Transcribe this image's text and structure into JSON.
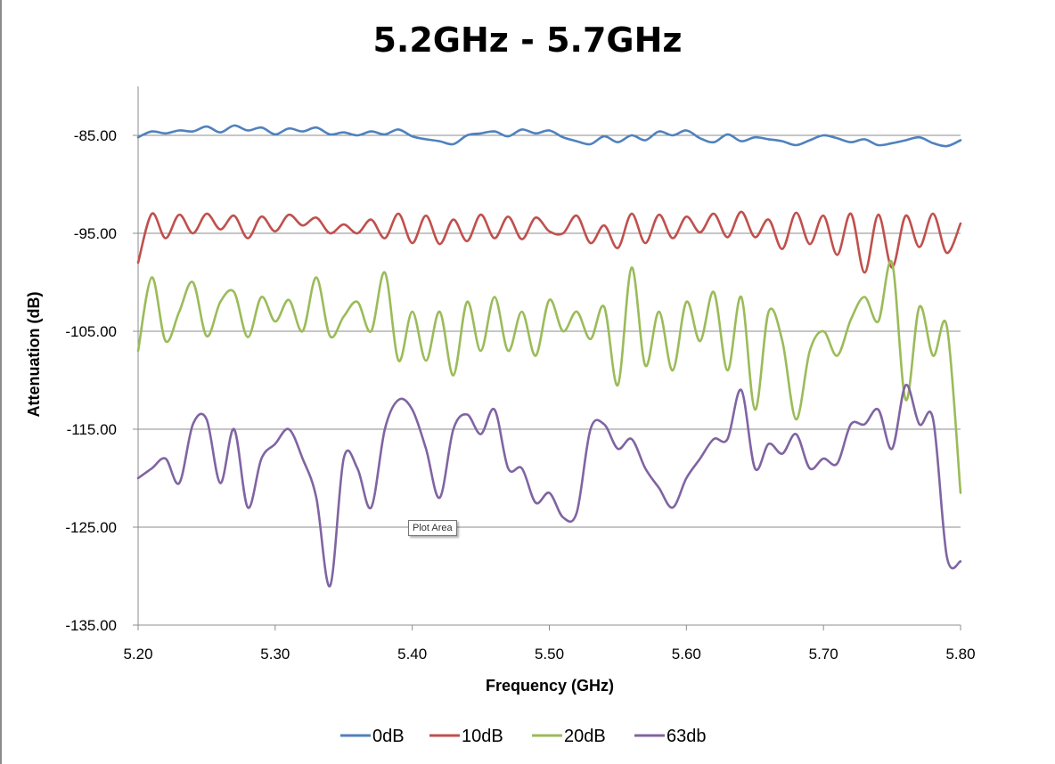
{
  "chart_data": {
    "type": "line",
    "title": "5.2GHz - 5.7GHz",
    "xlabel": "Frequency (GHz)",
    "ylabel": "Attenuation (dB)",
    "xlim": [
      5.2,
      5.8
    ],
    "ylim": [
      -135,
      -80
    ],
    "x_ticks": [
      "5.20",
      "5.30",
      "5.40",
      "5.50",
      "5.60",
      "5.70",
      "5.80"
    ],
    "y_ticks": [
      "-85.00",
      "-95.00",
      "-105.00",
      "-115.00",
      "-125.00",
      "-135.00"
    ],
    "grid": "horizontal",
    "legend_position": "bottom",
    "x": [
      5.2,
      5.21,
      5.22,
      5.23,
      5.24,
      5.25,
      5.26,
      5.27,
      5.28,
      5.29,
      5.3,
      5.31,
      5.32,
      5.33,
      5.34,
      5.35,
      5.36,
      5.37,
      5.38,
      5.39,
      5.4,
      5.41,
      5.42,
      5.43,
      5.44,
      5.45,
      5.46,
      5.47,
      5.48,
      5.49,
      5.5,
      5.51,
      5.52,
      5.53,
      5.54,
      5.55,
      5.56,
      5.57,
      5.58,
      5.59,
      5.6,
      5.61,
      5.62,
      5.63,
      5.64,
      5.65,
      5.66,
      5.67,
      5.68,
      5.69,
      5.7,
      5.71,
      5.72,
      5.73,
      5.74,
      5.75,
      5.76,
      5.77,
      5.78,
      5.79,
      5.8
    ],
    "series": [
      {
        "name": "0dB",
        "color": "#4f81bd",
        "values": [
          -85.2,
          -84.6,
          -84.8,
          -84.5,
          -84.6,
          -84.1,
          -84.7,
          -84.0,
          -84.5,
          -84.2,
          -84.9,
          -84.3,
          -84.6,
          -84.2,
          -84.9,
          -84.7,
          -85.0,
          -84.6,
          -84.9,
          -84.4,
          -85.1,
          -85.4,
          -85.6,
          -85.9,
          -85.0,
          -84.8,
          -84.6,
          -85.1,
          -84.4,
          -84.8,
          -84.5,
          -85.2,
          -85.6,
          -85.9,
          -85.1,
          -85.7,
          -85.0,
          -85.5,
          -84.6,
          -85.0,
          -84.5,
          -85.3,
          -85.7,
          -84.9,
          -85.6,
          -85.2,
          -85.4,
          -85.6,
          -86.0,
          -85.5,
          -85.0,
          -85.3,
          -85.7,
          -85.4,
          -86.0,
          -85.8,
          -85.5,
          -85.2,
          -85.8,
          -86.1,
          -85.5
        ]
      },
      {
        "name": "10dB",
        "color": "#c0504d",
        "values": [
          -98.0,
          -93.0,
          -95.5,
          -93.1,
          -95.0,
          -93.0,
          -94.6,
          -93.2,
          -95.5,
          -93.3,
          -94.8,
          -93.1,
          -94.2,
          -93.4,
          -95.0,
          -94.1,
          -95.0,
          -93.6,
          -95.5,
          -93.0,
          -96.0,
          -93.2,
          -96.1,
          -93.6,
          -95.8,
          -93.1,
          -95.5,
          -93.3,
          -95.6,
          -93.4,
          -94.8,
          -95.0,
          -93.2,
          -96.0,
          -94.2,
          -96.5,
          -93.0,
          -96.0,
          -93.1,
          -95.5,
          -93.3,
          -94.9,
          -93.0,
          -95.4,
          -92.8,
          -95.4,
          -93.6,
          -96.6,
          -92.9,
          -96.1,
          -93.2,
          -97.2,
          -93.0,
          -99.0,
          -93.1,
          -98.5,
          -93.2,
          -96.4,
          -93.0,
          -97.0,
          -94.0
        ]
      },
      {
        "name": "20dB",
        "color": "#9bbb59",
        "values": [
          -107.0,
          -99.5,
          -106.0,
          -103.0,
          -100.0,
          -105.5,
          -102.0,
          -101.0,
          -105.6,
          -101.5,
          -104.0,
          -101.8,
          -105.0,
          -99.5,
          -105.5,
          -103.5,
          -102.0,
          -105.0,
          -99.0,
          -108.0,
          -103.0,
          -108.0,
          -103.0,
          -109.5,
          -102.0,
          -107.0,
          -101.5,
          -107.0,
          -103.0,
          -107.5,
          -101.8,
          -105.0,
          -103.0,
          -105.8,
          -102.5,
          -110.5,
          -98.5,
          -108.5,
          -103.0,
          -109.0,
          -102.0,
          -106.0,
          -101.0,
          -109.0,
          -101.5,
          -113.0,
          -103.0,
          -106.0,
          -114.0,
          -107.0,
          -105.0,
          -107.5,
          -103.8,
          -101.5,
          -104.0,
          -98.0,
          -112.0,
          -102.5,
          -107.5,
          -104.5,
          -121.5
        ]
      },
      {
        "name": "63db",
        "color": "#8064a2",
        "values": [
          -120.0,
          -119.0,
          -118.0,
          -120.5,
          -114.5,
          -114.0,
          -120.5,
          -115.0,
          -123.0,
          -118.0,
          -116.5,
          -115.0,
          -118.0,
          -122.0,
          -131.0,
          -118.0,
          -119.0,
          -123.0,
          -115.0,
          -112.0,
          -113.0,
          -117.0,
          -122.0,
          -115.0,
          -113.5,
          -115.5,
          -113.0,
          -119.0,
          -119.0,
          -122.5,
          -121.5,
          -124.0,
          -123.5,
          -115.0,
          -114.5,
          -117.0,
          -116.0,
          -119.0,
          -121.0,
          -123.0,
          -120.0,
          -118.0,
          -116.0,
          -116.0,
          -111.0,
          -119.0,
          -116.5,
          -117.5,
          -115.5,
          -119.0,
          -118.0,
          -118.5,
          -114.5,
          -114.5,
          -113.0,
          -117.0,
          -110.5,
          -114.5,
          -114.0,
          -128.0,
          -128.5
        ]
      }
    ]
  },
  "tooltip": {
    "label": "Plot Area"
  }
}
